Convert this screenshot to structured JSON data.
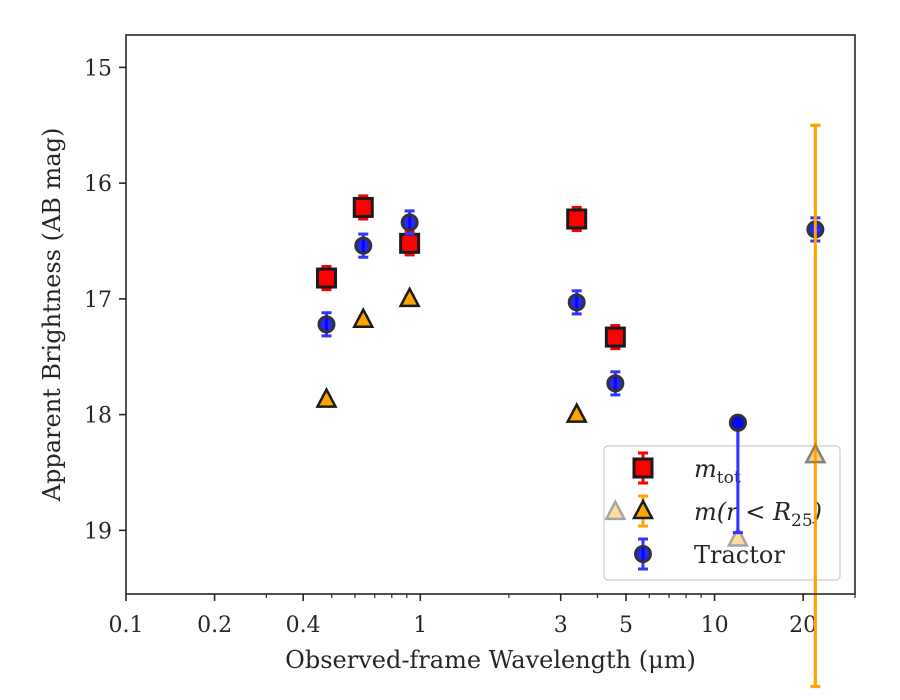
{
  "chart_data": {
    "type": "scatter",
    "xlabel": "Observed-frame Wavelength (μm)",
    "ylabel": "Apparent Brightness (AB mag)",
    "xscale": "log",
    "xlim": [
      0.1,
      30
    ],
    "ylim": [
      19.55,
      14.72
    ],
    "y_inverted": true,
    "grid": false,
    "legend_position": "lower-right",
    "x_ticks": [
      0.1,
      0.2,
      0.4,
      1,
      3,
      5,
      10,
      20
    ],
    "x_tick_labels": [
      "0.1",
      "0.2",
      "0.4",
      "1",
      "3",
      "5",
      "10",
      "20"
    ],
    "y_ticks": [
      15,
      16,
      17,
      18,
      19
    ],
    "y_tick_labels": [
      "15",
      "16",
      "17",
      "18",
      "19"
    ],
    "series": [
      {
        "name": "m_tot",
        "label_main": "m",
        "label_sub": "tot",
        "marker": "square",
        "color": "#ff0000",
        "errcolor": "#ff0000",
        "points": [
          {
            "x": 0.48,
            "y": 16.82,
            "err": 0.1
          },
          {
            "x": 0.64,
            "y": 16.21,
            "err": 0.1
          },
          {
            "x": 0.92,
            "y": 16.52,
            "err": 0.1
          },
          {
            "x": 3.4,
            "y": 16.31,
            "err": 0.1
          },
          {
            "x": 4.6,
            "y": 17.33,
            "err": 0.1
          }
        ]
      },
      {
        "name": "m(r < R25)",
        "label_main": "m(r < R",
        "label_sub": "25",
        "label_end": ")",
        "marker": "triangle",
        "color": "#ffa500",
        "errcolor": "#ffa500",
        "points": [
          {
            "x": 0.48,
            "y": 17.87,
            "err": 0.03
          },
          {
            "x": 0.64,
            "y": 17.18,
            "err": 0.03
          },
          {
            "x": 0.92,
            "y": 17.0,
            "err": 0.03
          },
          {
            "x": 3.4,
            "y": 18.0,
            "err": 0.03
          },
          {
            "x": 4.6,
            "y": 18.84,
            "err": 0.03,
            "faded": true
          },
          {
            "x": 12.0,
            "y": 19.07,
            "err": 0.03,
            "faded": true
          },
          {
            "x": 22.0,
            "y": 18.35,
            "err_low": 2.0,
            "err_high": 2.85,
            "faded": true
          }
        ]
      },
      {
        "name": "Tractor",
        "label_main": "Tractor",
        "marker": "circle",
        "color": "#0000ff",
        "errcolor": "#3333ff",
        "points": [
          {
            "x": 0.48,
            "y": 17.22,
            "err": 0.1
          },
          {
            "x": 0.64,
            "y": 16.54,
            "err": 0.1
          },
          {
            "x": 0.92,
            "y": 16.34,
            "err": 0.1
          },
          {
            "x": 3.4,
            "y": 17.03,
            "err": 0.1
          },
          {
            "x": 4.6,
            "y": 17.73,
            "err": 0.1
          },
          {
            "x": 12.0,
            "y": 18.07,
            "err_low": 0.95,
            "err_high": 0.0
          },
          {
            "x": 22.0,
            "y": 16.4,
            "err": 0.1
          }
        ]
      }
    ]
  }
}
